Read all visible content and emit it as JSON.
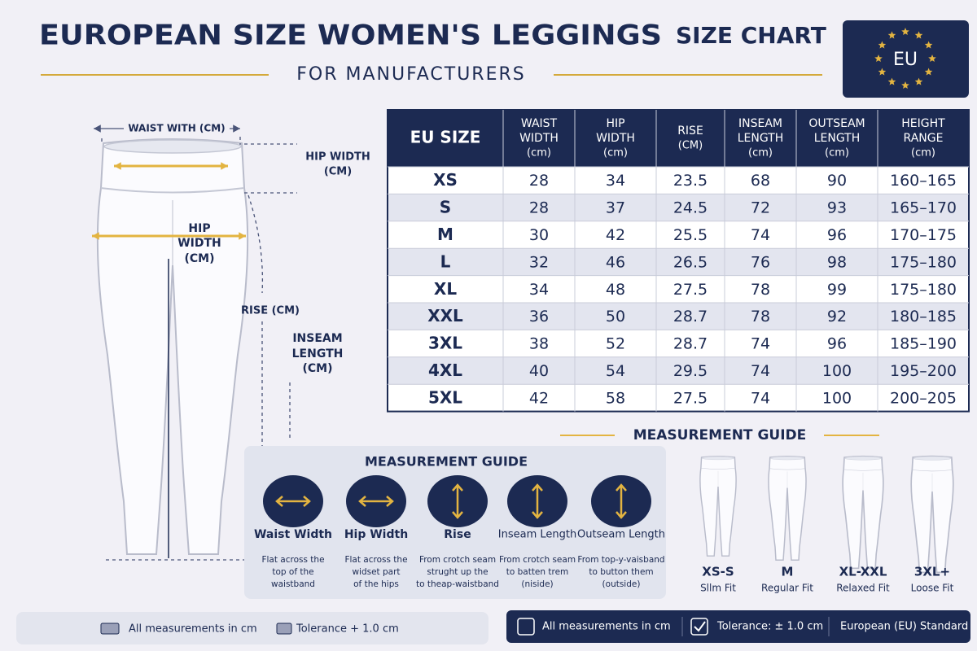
{
  "header": {
    "title": "EUROPEAN SIZE WOMEN'S LEGGINGS",
    "title_suffix": "SIZE CHART",
    "subtitle": "FOR MANUFACTURERS",
    "badge": "EU"
  },
  "diagram": {
    "waist_label": "WAIST WITH (CM)",
    "hip_top_label": [
      "HIP WIDTH",
      "(CM)"
    ],
    "hip_label": [
      "HIP",
      "WIDTH",
      "(CM)"
    ],
    "rise_label": "RISE (CM)",
    "inseam_label": [
      "INSEAM",
      "LENGTH",
      "(CM)"
    ]
  },
  "table": {
    "columns": [
      {
        "lines": [
          "EU SIZE"
        ]
      },
      {
        "lines": [
          "WAIST",
          "WIDTH"
        ],
        "unit": "(cm)"
      },
      {
        "lines": [
          "HIP",
          "WIDTH"
        ],
        "unit": "(cm)"
      },
      {
        "lines": [
          "RISE"
        ],
        "unit": "(CM)"
      },
      {
        "lines": [
          "INSEAM",
          "LENGTH"
        ],
        "unit": "(cm)"
      },
      {
        "lines": [
          "OUTSEAM",
          "LENGTH"
        ],
        "unit": "(cm)"
      },
      {
        "lines": [
          "HEIGHT",
          "RANGE"
        ],
        "unit": "(cm)"
      }
    ],
    "rows": [
      [
        "XS",
        28,
        34,
        23.5,
        68,
        90,
        "160–165"
      ],
      [
        "S",
        28,
        37,
        24.5,
        72,
        93,
        "165–170"
      ],
      [
        "M",
        30,
        42,
        25.5,
        74,
        96,
        "170–175"
      ],
      [
        "L",
        32,
        46,
        26.5,
        76,
        98,
        "175–180"
      ],
      [
        "XL",
        34,
        48,
        27.5,
        78,
        99,
        "175–180"
      ],
      [
        "XXL",
        36,
        50,
        28.7,
        78,
        92,
        "180–185"
      ],
      [
        "3XL",
        38,
        52,
        28.7,
        74,
        96,
        "185–190"
      ],
      [
        "4XL",
        40,
        54,
        29.5,
        74,
        100,
        "195–200"
      ],
      [
        "5XL",
        42,
        58,
        27.5,
        74,
        100,
        "200–205"
      ]
    ]
  },
  "guide": {
    "title": "MEASUREMENT GUIDE",
    "items": [
      {
        "name": "Waist Width",
        "desc": [
          "Flat across the",
          "top of the",
          "waistband"
        ]
      },
      {
        "name": "Hip Width",
        "desc": [
          "Flat across the",
          "widset part",
          "of the hips"
        ]
      },
      {
        "name": "Rise",
        "desc": [
          "From crotch seam",
          "strught up the",
          "to theap-waistband"
        ]
      },
      {
        "name": "Inseam Length",
        "desc": [
          "From crotch seam",
          "to batten trem",
          "(niside)"
        ]
      },
      {
        "name": "Outseam Length",
        "desc": [
          "From top-y-vaisband",
          "to button them",
          "(outside)"
        ]
      }
    ]
  },
  "fit_guide": {
    "title": "MEASUREMENT GUIDE",
    "fits": [
      {
        "size": "XS-S",
        "fit": "Sllm Fit"
      },
      {
        "size": "M",
        "fit": "Regular Fit"
      },
      {
        "size": "XL-XXL",
        "fit": "Relaxed Fit"
      },
      {
        "size": "3XL+",
        "fit": "Loose Fit"
      }
    ]
  },
  "footer_left": [
    "All measurements in cm",
    "Tolerance + 1.0 cm"
  ],
  "footer_right": [
    "All measurements in cm",
    "Tolerance: ± 1.0 cm",
    "European (EU) Standard"
  ]
}
